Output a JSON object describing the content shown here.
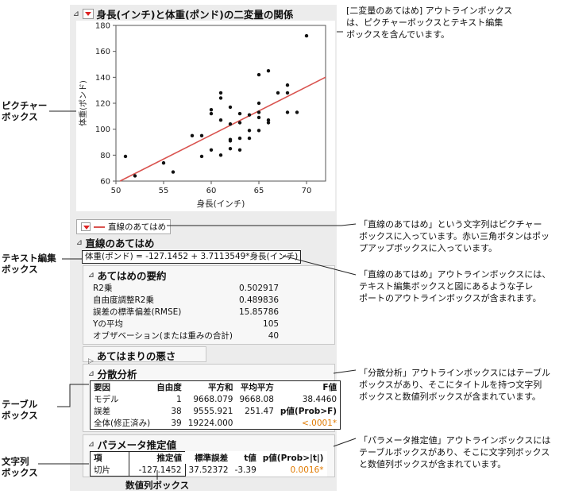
{
  "main_header": "身長(インチ)と体重(ポンド)の二変量の関係",
  "chart_data": {
    "type": "scatter",
    "xlabel": "身長(インチ)",
    "ylabel": "体重(ポンド)",
    "xlim": [
      50,
      72
    ],
    "ylim": [
      60,
      180
    ],
    "xticks": [
      "50",
      "55",
      "60",
      "65",
      "70"
    ],
    "yticks": [
      "60",
      "80",
      "100",
      "120",
      "140",
      "160",
      "180"
    ],
    "points": [
      [
        51,
        79
      ],
      [
        52,
        64
      ],
      [
        55,
        74
      ],
      [
        56,
        67
      ],
      [
        58,
        95
      ],
      [
        59,
        95
      ],
      [
        59,
        79
      ],
      [
        60,
        84
      ],
      [
        60,
        115
      ],
      [
        60,
        112
      ],
      [
        61,
        128
      ],
      [
        61,
        124
      ],
      [
        61,
        107
      ],
      [
        61,
        80
      ],
      [
        62,
        117
      ],
      [
        62,
        104
      ],
      [
        62,
        92
      ],
      [
        62,
        91
      ],
      [
        62,
        85
      ],
      [
        63,
        105
      ],
      [
        63,
        93
      ],
      [
        63,
        84
      ],
      [
        63,
        112
      ],
      [
        64,
        99
      ],
      [
        64,
        111
      ],
      [
        64,
        93
      ],
      [
        65,
        142
      ],
      [
        65,
        120
      ],
      [
        65,
        113
      ],
      [
        65,
        99
      ],
      [
        65,
        109
      ],
      [
        66,
        145
      ],
      [
        66,
        107
      ],
      [
        66,
        105
      ],
      [
        67,
        128
      ],
      [
        68,
        134
      ],
      [
        68,
        128
      ],
      [
        68,
        113
      ],
      [
        69,
        113
      ],
      [
        70,
        172
      ]
    ],
    "fit_line": {
      "intercept": -127.1452,
      "slope": 3.7113549,
      "color": "#d9534f"
    },
    "grid": false
  },
  "fit_button_label": "直線のあてはめ",
  "fit_section": {
    "title": "直線のあてはめ",
    "equation": "体重(ポンド) = -127.1452 + 3.7113549*身長(インチ)"
  },
  "summary": {
    "title": "あてはめの要約",
    "rows": [
      {
        "label": "R2乗",
        "value": "0.502917"
      },
      {
        "label": "自由度調整R2乗",
        "value": "0.489836"
      },
      {
        "label": "誤差の標準偏差(RMSE)",
        "value": "15.85786"
      },
      {
        "label": "Yの平均",
        "value": "105"
      },
      {
        "label": "オブザベーション(または重みの合計)",
        "value": "40"
      }
    ]
  },
  "lof": {
    "title": "あてはまりの悪さ(LOF)"
  },
  "anova": {
    "title": "分散分析",
    "headers": [
      "要因",
      "自由度",
      "平方和",
      "平均平方",
      "F値"
    ],
    "rows": [
      [
        "モデル",
        "1",
        "9668.079",
        "9668.08",
        "38.4460"
      ],
      [
        "誤差",
        "38",
        "9555.921",
        "251.47",
        "p値(Prob>F)"
      ],
      [
        "全体(修正済み)",
        "39",
        "19224.000",
        "",
        "<.0001*"
      ]
    ]
  },
  "params": {
    "title": "パラメータ推定値",
    "headers": [
      "項",
      "推定値",
      "標準誤差",
      "t値",
      "p値(Prob>|t|)"
    ],
    "rows": [
      [
        "切片",
        "-127.1452",
        "37.52372",
        "-3.39",
        "0.0016*"
      ]
    ]
  },
  "annotations": {
    "picture_box": "ピクチャー\nボックス",
    "text_edit_box": "テキスト編集\nボックス",
    "table_box": "テーブル\nボックス",
    "string_col_box": "文字列\nボックス",
    "number_col_box": "数値列ボックス",
    "note_top": "[二変量のあてはめ] アウトラインボックス\nは、ピクチャーボックスとテキスト編集\nボックスを含んでいます。",
    "note_fit_string": "「直線のあてはめ」という文字列はピクチャー\nボックスに入っています。赤い三角ボタンはポッ\nプアップボックスに入っています。",
    "note_fit_outline": "「直線のあてはめ」アウトラインボックスには、\nテキスト編集ボックスと図にあるような子レ\nポートのアウトラインボックスが含まれます。",
    "note_anova": "「分散分析」アウトラインボックスにはテーブル\nボックスがあり、そこにタイトルを持つ文字列\nボックスと数値列ボックスが含まれています。",
    "note_params": "「パラメータ推定値」アウトラインボックスには\nテーブルボックスがあり、そこに文字列ボックス\nと数値列ボックスが含まれています。"
  }
}
